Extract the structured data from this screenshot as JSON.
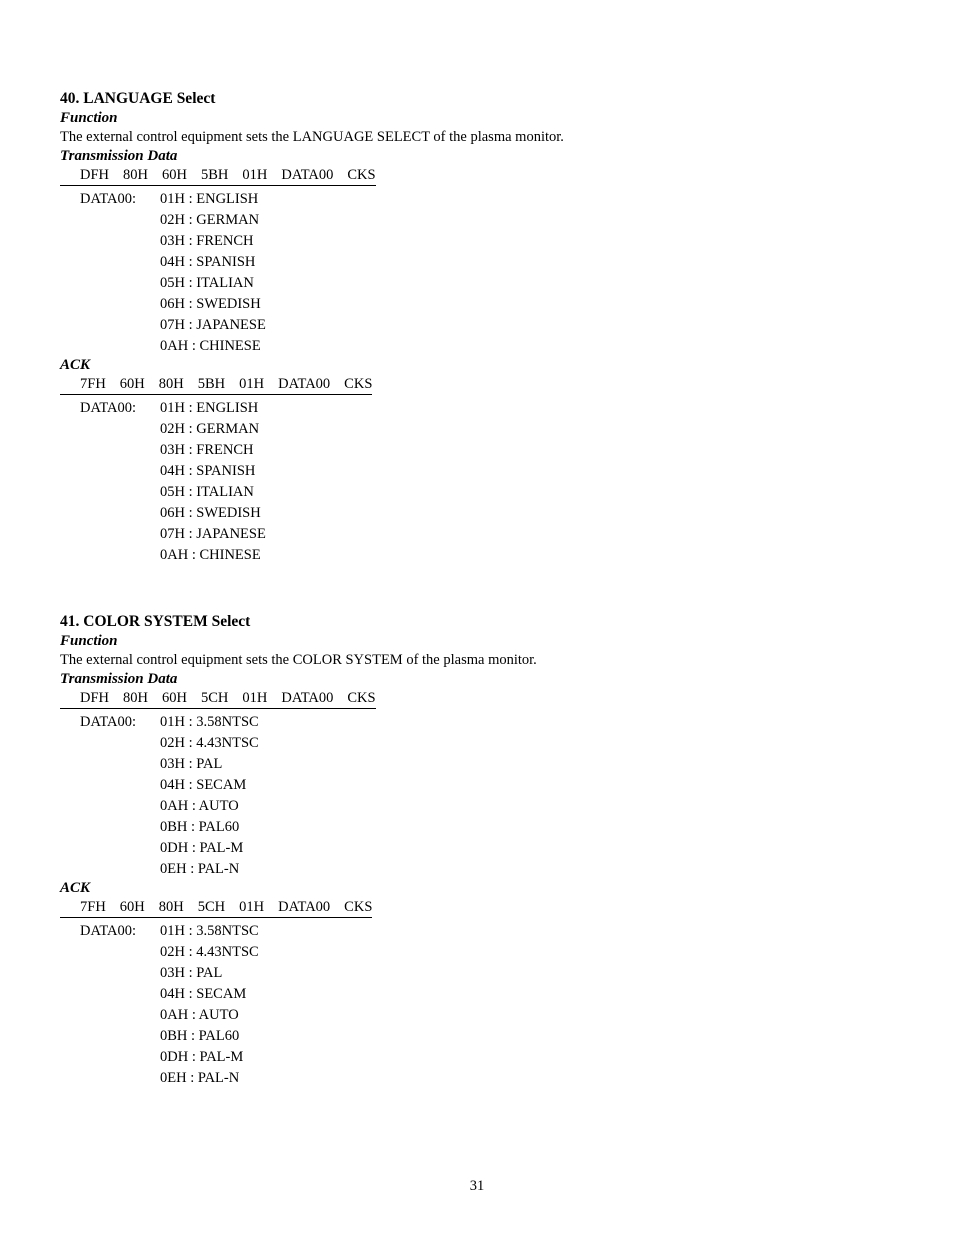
{
  "section40": {
    "title": "40. LANGUAGE Select",
    "function_label": "Function",
    "function_text": "The external control equipment sets the LANGUAGE SELECT of the plasma monitor.",
    "transmission_label": "Transmission Data",
    "transmission_packet": [
      "DFH",
      "80H",
      "60H",
      "5BH",
      "01H",
      "DATA00",
      "CKS"
    ],
    "transmission_data_prefix": "DATA00:",
    "transmission_data_items": [
      "01H : ENGLISH",
      "02H : GERMAN",
      "03H : FRENCH",
      "04H : SPANISH",
      "05H : ITALIAN",
      "06H : SWEDISH",
      "07H : JAPANESE",
      "0AH : CHINESE"
    ],
    "ack_label": "ACK",
    "ack_packet": [
      "7FH",
      "60H",
      "80H",
      "5BH",
      "01H",
      "DATA00",
      "CKS"
    ],
    "ack_data_prefix": "DATA00:",
    "ack_data_items": [
      "01H : ENGLISH",
      "02H : GERMAN",
      "03H : FRENCH",
      "04H : SPANISH",
      "05H : ITALIAN",
      "06H : SWEDISH",
      "07H : JAPANESE",
      "0AH : CHINESE"
    ]
  },
  "section41": {
    "title": "41. COLOR SYSTEM Select",
    "function_label": "Function",
    "function_text": "The external control equipment sets the COLOR SYSTEM of the plasma monitor.",
    "transmission_label": "Transmission Data",
    "transmission_packet": [
      "DFH",
      "80H",
      "60H",
      "5CH",
      "01H",
      "DATA00",
      "CKS"
    ],
    "transmission_data_prefix": "DATA00:",
    "transmission_data_items": [
      "01H : 3.58NTSC",
      "02H : 4.43NTSC",
      "03H : PAL",
      "04H : SECAM",
      "0AH : AUTO",
      "0BH : PAL60",
      "0DH : PAL-M",
      "0EH : PAL-N"
    ],
    "ack_label": "ACK",
    "ack_packet": [
      "7FH",
      "60H",
      "80H",
      "5CH",
      "01H",
      "DATA00",
      "CKS"
    ],
    "ack_data_prefix": "DATA00:",
    "ack_data_items": [
      "01H : 3.58NTSC",
      "02H : 4.43NTSC",
      "03H : PAL",
      "04H : SECAM",
      "0AH : AUTO",
      "0BH : PAL60",
      "0DH : PAL-M",
      "0EH : PAL-N"
    ]
  },
  "page_number": "31"
}
